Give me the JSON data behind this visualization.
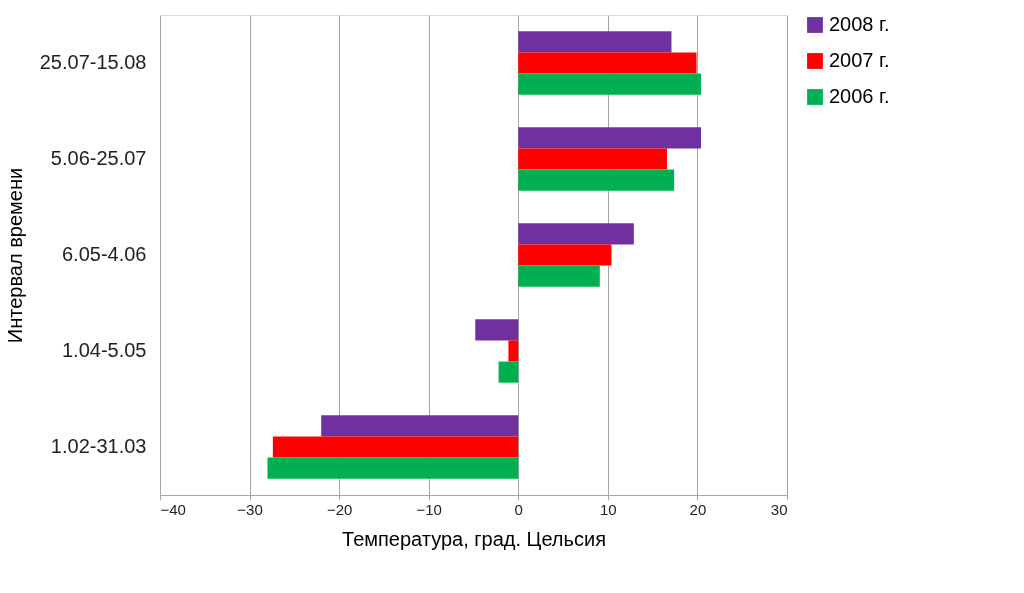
{
  "chart_data": {
    "type": "bar",
    "orientation": "horizontal",
    "xlabel": "Температура, град. Цельсия",
    "ylabel": "Интервал времени",
    "categories": [
      "25.07-15.08",
      "5.06-25.07",
      "6.05-4.06",
      "1.04-5.05",
      "1.02-31.03"
    ],
    "series": [
      {
        "name": "2008 г.",
        "color": "#7030a0",
        "values": [
          17.1,
          20.4,
          12.9,
          -4.8,
          -22.0
        ]
      },
      {
        "name": "2007 г.",
        "color": "#ff0000",
        "values": [
          19.9,
          16.6,
          10.4,
          -1.1,
          -27.4
        ]
      },
      {
        "name": "2006 г.",
        "color": "#00b050",
        "values": [
          20.4,
          17.4,
          9.1,
          -2.2,
          -28.0
        ]
      }
    ],
    "xlim": [
      -40,
      30
    ],
    "xticks": [
      -40,
      -30,
      -20,
      -10,
      0,
      10,
      20,
      30
    ],
    "grid": "x",
    "legend": "right"
  }
}
